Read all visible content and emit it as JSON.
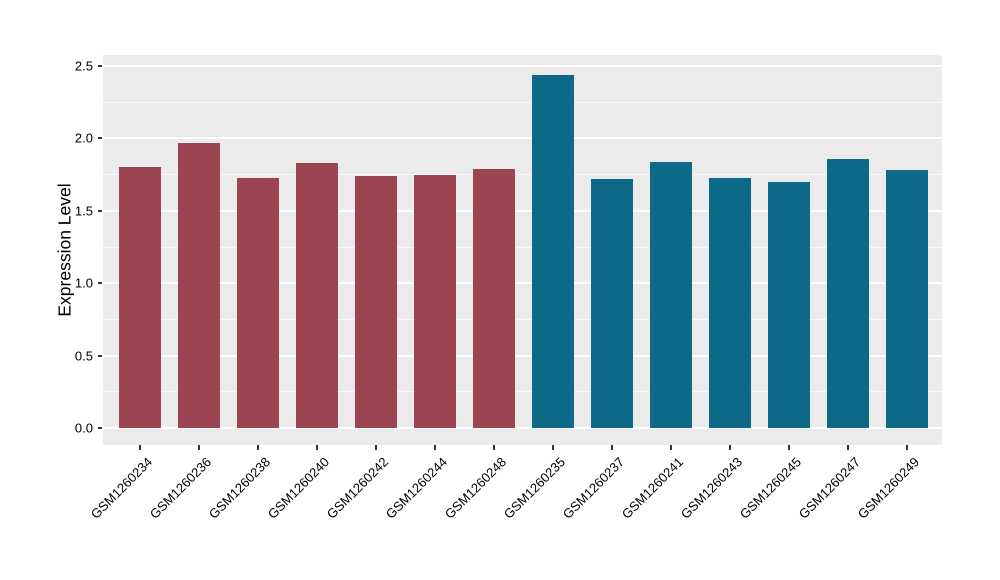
{
  "chart_data": {
    "type": "bar",
    "title": "",
    "xlabel": "",
    "ylabel": "Expression Level",
    "categories": [
      "GSM1260234",
      "GSM1260236",
      "GSM1260238",
      "GSM1260240",
      "GSM1260242",
      "GSM1260244",
      "GSM1260248",
      "GSM1260235",
      "GSM1260237",
      "GSM1260241",
      "GSM1260243",
      "GSM1260245",
      "GSM1260247",
      "GSM1260249"
    ],
    "values": [
      1.8,
      1.97,
      1.73,
      1.83,
      1.74,
      1.75,
      1.79,
      2.44,
      1.72,
      1.84,
      1.73,
      1.7,
      1.86,
      1.78
    ],
    "group_of": [
      "A",
      "A",
      "A",
      "A",
      "A",
      "A",
      "A",
      "B",
      "B",
      "B",
      "B",
      "B",
      "B",
      "B"
    ],
    "group_colors": {
      "A": "#9D4452",
      "B": "#0E6888"
    },
    "ylim": [
      0,
      2.5
    ],
    "yticks": [
      0.0,
      0.5,
      1.0,
      1.5,
      2.0,
      2.5
    ],
    "ytick_labels": [
      "0.0",
      "0.5",
      "1.0",
      "1.5",
      "2.0",
      "2.5"
    ],
    "minor_gridlines": [
      0.25,
      0.75,
      1.25,
      1.75,
      2.25
    ],
    "grid": true,
    "legend": "none",
    "panel_bg": "#EBEBEB",
    "grid_color": "#FFFFFF"
  }
}
